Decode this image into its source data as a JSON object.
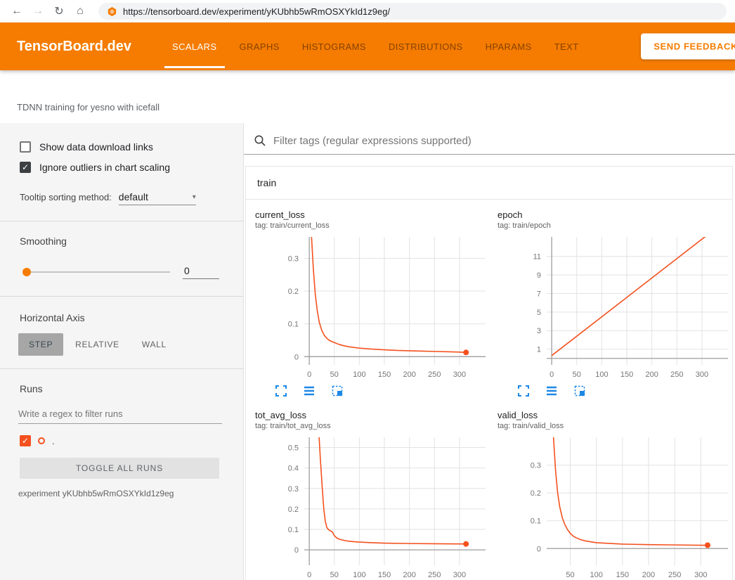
{
  "browser": {
    "url": "https://tensorboard.dev/experiment/yKUbhb5wRmOSXYkId1z9eg/"
  },
  "icons": {
    "back": "←",
    "forward": "→",
    "refresh": "↻",
    "home": "⌂",
    "check": "✓",
    "caret": "▾"
  },
  "header": {
    "brand": "TensorBoard.dev",
    "tabs": [
      {
        "label": "SCALARS",
        "active": true
      },
      {
        "label": "GRAPHS",
        "active": false
      },
      {
        "label": "HISTOGRAMS",
        "active": false
      },
      {
        "label": "DISTRIBUTIONS",
        "active": false
      },
      {
        "label": "HPARAMS",
        "active": false
      },
      {
        "label": "TEXT",
        "active": false
      }
    ],
    "feedback_button": "SEND FEEDBACK",
    "accent_color": "#f57c00"
  },
  "experiment": {
    "title": "TDNN training for yesno with icefall",
    "name": "experiment yKUbhb5wRmOSXYkId1z9eg"
  },
  "sidebar": {
    "checkboxes": [
      {
        "label": "Show data download links",
        "checked": false
      },
      {
        "label": "Ignore outliers in chart scaling",
        "checked": true
      }
    ],
    "tooltip_sorting": {
      "label": "Tooltip sorting method:",
      "value": "default"
    },
    "smoothing": {
      "label": "Smoothing",
      "value": "0"
    },
    "horizontal_axis": {
      "label": "Horizontal Axis",
      "options": [
        {
          "label": "STEP",
          "active": true
        },
        {
          "label": "RELATIVE",
          "active": false
        },
        {
          "label": "WALL",
          "active": false
        }
      ]
    },
    "runs": {
      "label": "Runs",
      "filter_placeholder": "Write a regex to filter runs",
      "run_name": ".",
      "run_checked": true,
      "run_color": "#f4511e",
      "toggle_button": "TOGGLE ALL RUNS"
    }
  },
  "main": {
    "filter_placeholder": "Filter tags (regular expressions supported)",
    "group": "train"
  },
  "colors": {
    "series": "#f4511e",
    "tool_icon_blue": "#1e88e5",
    "grid": "#e2e2e2",
    "zero_axis": "#9e9e9e"
  },
  "chart_data": [
    {
      "id": "current_loss",
      "type": "line",
      "title": "current_loss",
      "tag": "tag: train/current_loss",
      "color": "#f4511e",
      "xlim": [
        -10,
        352
      ],
      "ylim": [
        -0.025,
        0.365
      ],
      "xticks": [
        0,
        50,
        100,
        150,
        200,
        250,
        300
      ],
      "yticks": [
        0,
        0.1,
        0.2,
        0.3
      ],
      "x": [
        0,
        4,
        8,
        12,
        16,
        20,
        25,
        30,
        35,
        40,
        45,
        50,
        60,
        70,
        80,
        100,
        125,
        150,
        175,
        200,
        225,
        250,
        275,
        300,
        313
      ],
      "y": [
        0.55,
        0.38,
        0.27,
        0.19,
        0.14,
        0.105,
        0.08,
        0.065,
        0.056,
        0.05,
        0.046,
        0.043,
        0.037,
        0.033,
        0.03,
        0.026,
        0.023,
        0.021,
        0.019,
        0.018,
        0.017,
        0.016,
        0.015,
        0.014,
        0.013
      ],
      "end_dot": true
    },
    {
      "id": "epoch",
      "type": "line",
      "title": "epoch",
      "tag": "tag: train/epoch",
      "color": "#f4511e",
      "xlim": [
        -10,
        352
      ],
      "ylim": [
        -0.7,
        13.1
      ],
      "xticks": [
        0,
        50,
        100,
        150,
        200,
        250,
        300
      ],
      "yticks": [
        1,
        3,
        5,
        7,
        9,
        11
      ],
      "x": [
        0,
        313
      ],
      "y": [
        0.3,
        13.4
      ],
      "end_dot": false
    },
    {
      "id": "tot_avg_loss",
      "type": "line",
      "title": "tot_avg_loss",
      "tag": "tag: train/tot_avg_loss",
      "color": "#f4511e",
      "xlim": [
        -10,
        352
      ],
      "ylim": [
        -0.075,
        0.55
      ],
      "xticks": [
        0,
        50,
        100,
        150,
        200,
        250,
        300
      ],
      "yticks": [
        0,
        0.1,
        0.2,
        0.3,
        0.4,
        0.5
      ],
      "x": [
        18,
        22,
        26,
        29,
        32,
        35,
        38,
        42,
        46,
        50,
        55,
        60,
        70,
        80,
        100,
        125,
        150,
        200,
        250,
        300,
        313
      ],
      "y": [
        0.62,
        0.45,
        0.3,
        0.2,
        0.14,
        0.11,
        0.1,
        0.093,
        0.088,
        0.07,
        0.058,
        0.052,
        0.046,
        0.042,
        0.038,
        0.035,
        0.033,
        0.031,
        0.03,
        0.029,
        0.029
      ],
      "end_dot": true
    },
    {
      "id": "valid_loss",
      "type": "line",
      "title": "valid_loss",
      "tag": "tag: train/valid_loss",
      "color": "#f4511e",
      "xlim": [
        5,
        352
      ],
      "ylim": [
        -0.06,
        0.4
      ],
      "xticks": [
        50,
        100,
        150,
        200,
        250,
        300
      ],
      "yticks": [
        0,
        0.1,
        0.2,
        0.3
      ],
      "x": [
        14,
        18,
        22,
        26,
        30,
        35,
        40,
        45,
        50,
        55,
        60,
        70,
        80,
        100,
        150,
        200,
        250,
        300,
        313
      ],
      "y": [
        0.55,
        0.4,
        0.28,
        0.2,
        0.15,
        0.11,
        0.085,
        0.068,
        0.055,
        0.046,
        0.04,
        0.032,
        0.027,
        0.021,
        0.016,
        0.014,
        0.013,
        0.012,
        0.012
      ],
      "end_dot": true
    }
  ]
}
